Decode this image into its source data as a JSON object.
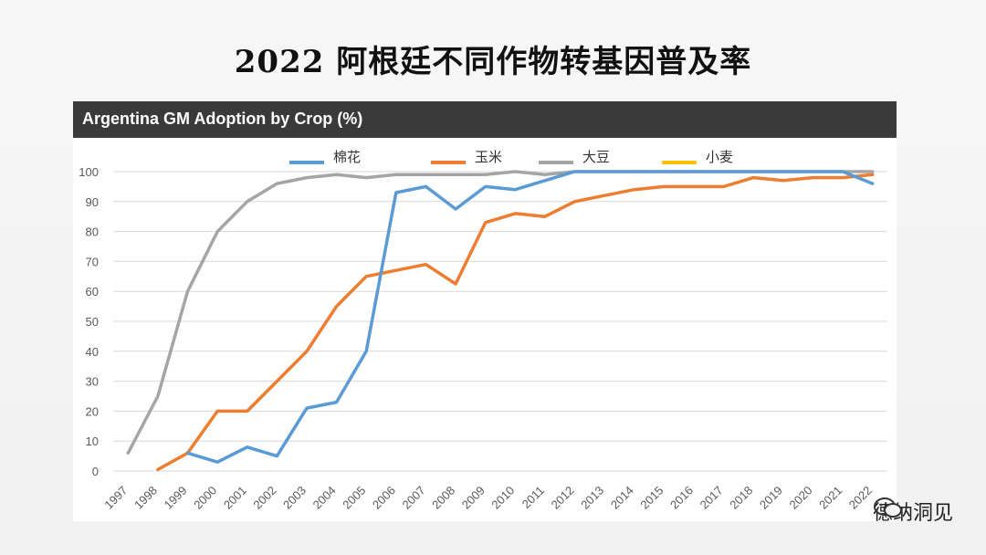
{
  "title": "2022 阿根廷不同作物转基因普及率",
  "header": "Argentina GM Adoption by Crop (%)",
  "watermark": "德纳洞见",
  "chart_data": {
    "type": "line",
    "title": "Argentina GM Adoption by Crop (%)",
    "xlabel": "",
    "ylabel": "",
    "ylim": [
      0,
      100
    ],
    "yticks": [
      0,
      10,
      20,
      30,
      40,
      50,
      60,
      70,
      80,
      90,
      100
    ],
    "x": [
      "1997",
      "1998",
      "1999",
      "2000",
      "2001",
      "2002",
      "2003",
      "2004",
      "2005",
      "2006",
      "2007",
      "2008",
      "2009",
      "2010",
      "2011",
      "2012",
      "2013",
      "2014",
      "2015",
      "2016",
      "2017",
      "2018",
      "2019",
      "2020",
      "2021",
      "2022"
    ],
    "legend_position": "top",
    "series": [
      {
        "name": "大豆",
        "color": "#a5a5a5",
        "values": [
          6,
          25,
          60,
          80,
          90,
          96,
          98,
          99,
          98,
          99,
          99,
          99,
          99,
          100,
          99,
          100,
          100,
          100,
          100,
          100,
          100,
          100,
          100,
          100,
          100,
          100
        ]
      },
      {
        "name": "小麦",
        "color": "#ffc000",
        "values": [
          null,
          null,
          null,
          null,
          null,
          null,
          null,
          null,
          null,
          null,
          null,
          null,
          null,
          null,
          null,
          null,
          null,
          null,
          null,
          null,
          null,
          null,
          null,
          null,
          null,
          null
        ]
      },
      {
        "name": "玉米",
        "color": "#ed7d31",
        "values": [
          null,
          0.5,
          6,
          20,
          20,
          30,
          40,
          55,
          65,
          67,
          69,
          62.5,
          83,
          86,
          85,
          90,
          92,
          94,
          95,
          95,
          95,
          98,
          97,
          98,
          98,
          99
        ]
      },
      {
        "name": "棉花",
        "color": "#5b9bd5",
        "values": [
          null,
          null,
          6,
          3,
          8,
          5,
          21,
          23,
          40,
          93,
          95,
          87.5,
          95,
          94,
          97,
          100,
          100,
          100,
          100,
          100,
          100,
          100,
          100,
          100,
          100,
          96
        ]
      }
    ],
    "legend_order": [
      "棉花",
      "玉米",
      "大豆",
      "小麦"
    ]
  }
}
